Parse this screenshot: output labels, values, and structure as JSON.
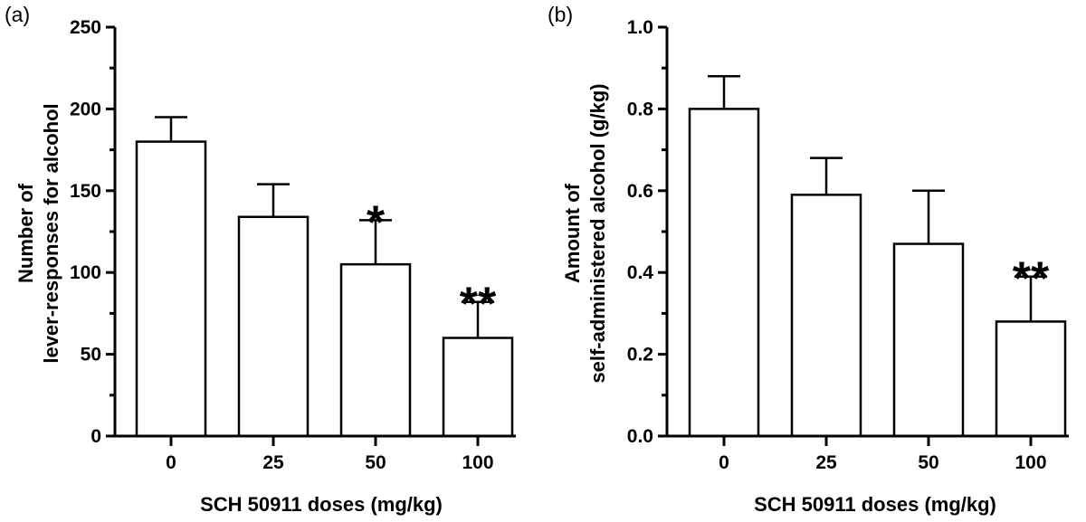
{
  "chart_data": [
    {
      "type": "bar",
      "panel_label": "(a)",
      "categories": [
        "0",
        "25",
        "50",
        "100"
      ],
      "values": [
        180,
        134,
        105,
        60
      ],
      "errors": [
        15,
        20,
        27,
        22
      ],
      "significance": [
        "",
        "",
        "*",
        "**"
      ],
      "xlabel": "SCH 50911 doses (mg/kg)",
      "ylabel_lines": [
        "Number of",
        "lever-responses for alcohol"
      ],
      "ylim": [
        0,
        250
      ],
      "yticks": [
        "0",
        "50",
        "100",
        "150",
        "200",
        "250"
      ],
      "ytick_values": [
        0,
        50,
        100,
        150,
        200,
        250
      ],
      "grid": false,
      "legend": "none"
    },
    {
      "type": "bar",
      "panel_label": "(b)",
      "categories": [
        "0",
        "25",
        "50",
        "100"
      ],
      "values": [
        0.8,
        0.59,
        0.47,
        0.28
      ],
      "errors": [
        0.08,
        0.09,
        0.13,
        0.11
      ],
      "significance": [
        "",
        "",
        "",
        "**"
      ],
      "xlabel": "SCH 50911 doses (mg/kg)",
      "ylabel_lines": [
        "Amount of",
        "self-administered alcohol (g/kg)"
      ],
      "ylim": [
        0,
        1.0
      ],
      "yticks": [
        "0.0",
        "0.2",
        "0.4",
        "0.6",
        "0.8",
        "1.0"
      ],
      "ytick_values": [
        0,
        0.2,
        0.4,
        0.6,
        0.8,
        1.0
      ],
      "grid": false,
      "legend": "none"
    }
  ]
}
